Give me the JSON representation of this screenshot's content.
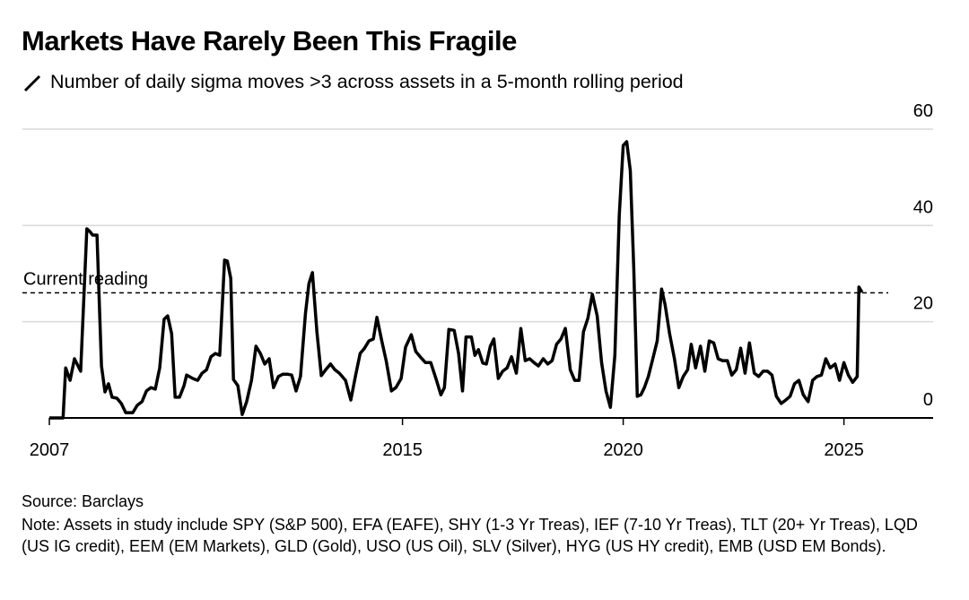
{
  "chart_data": {
    "type": "line",
    "title": "Markets Have Rarely Been This Fragile",
    "subtitle": "Number of daily sigma moves >3 across assets in a 5-month rolling period",
    "source": "Source: Barclays",
    "note": "Note: Assets in study include SPY (S&P 500), EFA (EAFE), SHY (1-3 Yr Treas), IEF (7-10 Yr Treas), TLT (20+ Yr Treas), LQD (US IG credit), EEM (EM Markets), GLD (Gold), USO (US Oil), SLV (Silver), HYG (US HY credit), EMB (USD EM Bonds).",
    "annotation": {
      "text": "Current reading",
      "value": 26
    },
    "color": "#000000",
    "grid": true,
    "xlim": [
      2007,
      2027
    ],
    "xticks": [
      2007,
      2015,
      2020,
      2025
    ],
    "ylim": [
      0,
      60
    ],
    "yticks": [
      0,
      20,
      40,
      60
    ],
    "x": [
      2007.0,
      2007.31,
      2007.37,
      2007.47,
      2007.57,
      2007.71,
      2007.85,
      2007.92,
      2007.98,
      2008.08,
      2008.18,
      2008.26,
      2008.34,
      2008.42,
      2008.53,
      2008.63,
      2008.73,
      2008.89,
      2008.99,
      2009.1,
      2009.2,
      2009.3,
      2009.4,
      2009.5,
      2009.6,
      2009.68,
      2009.77,
      2009.85,
      2009.95,
      2010.05,
      2010.11,
      2010.25,
      2010.36,
      2010.46,
      2010.56,
      2010.66,
      2010.76,
      2010.86,
      2010.97,
      2011.03,
      2011.11,
      2011.17,
      2011.27,
      2011.37,
      2011.47,
      2011.58,
      2011.68,
      2011.78,
      2011.88,
      2011.98,
      2012.08,
      2012.19,
      2012.29,
      2012.39,
      2012.49,
      2012.59,
      2012.69,
      2012.8,
      2012.88,
      2012.96,
      2013.06,
      2013.16,
      2013.26,
      2013.37,
      2013.47,
      2013.57,
      2013.71,
      2013.83,
      2013.94,
      2014.04,
      2014.14,
      2014.24,
      2014.34,
      2014.42,
      2014.53,
      2014.63,
      2014.75,
      2014.85,
      2014.97,
      2015.07,
      2015.2,
      2015.3,
      2015.4,
      2015.52,
      2015.64,
      2015.77,
      2015.87,
      2015.95,
      2016.05,
      2016.17,
      2016.27,
      2016.36,
      2016.44,
      2016.56,
      2016.64,
      2016.72,
      2016.82,
      2016.9,
      2016.99,
      2017.07,
      2017.17,
      2017.27,
      2017.37,
      2017.47,
      2017.58,
      2017.68,
      2017.78,
      2017.88,
      2017.98,
      2018.08,
      2018.19,
      2018.29,
      2018.39,
      2018.49,
      2018.59,
      2018.69,
      2018.8,
      2018.9,
      2019.0,
      2019.1,
      2019.2,
      2019.3,
      2019.41,
      2019.51,
      2019.61,
      2019.71,
      2019.81,
      2019.91,
      2020.0,
      2020.08,
      2020.16,
      2020.24,
      2020.32,
      2020.4,
      2020.48,
      2020.57,
      2020.67,
      2020.77,
      2020.87,
      2020.95,
      2021.05,
      2021.16,
      2021.26,
      2021.36,
      2021.46,
      2021.54,
      2021.64,
      2021.75,
      2021.85,
      2021.95,
      2022.05,
      2022.15,
      2022.25,
      2022.36,
      2022.46,
      2022.56,
      2022.66,
      2022.76,
      2022.86,
      2022.97,
      2023.07,
      2023.17,
      2023.27,
      2023.37,
      2023.47,
      2023.58,
      2023.68,
      2023.78,
      2023.88,
      2023.98,
      2024.08,
      2024.19,
      2024.29,
      2024.39,
      2024.49,
      2024.59,
      2024.69,
      2024.8,
      2024.9,
      2025.0,
      2025.1,
      2025.2,
      2025.3,
      2025.34,
      2025.41
    ],
    "values": [
      0,
      0,
      10.4,
      7.8,
      12.3,
      9.7,
      39.3,
      38.7,
      38,
      38,
      10.8,
      5.4,
      7.1,
      4.3,
      4.1,
      3,
      1.1,
      1.1,
      2.6,
      3.4,
      5.6,
      6.3,
      6,
      10.4,
      20.5,
      21.2,
      17.5,
      4.3,
      4.3,
      6.7,
      8.9,
      8.2,
      7.8,
      9.3,
      10,
      12.7,
      13.4,
      13,
      32.8,
      32.6,
      29,
      8,
      6.7,
      0.7,
      3.4,
      7.8,
      14.9,
      13.4,
      11.2,
      12.3,
      6.3,
      8.6,
      9.1,
      9.1,
      8.9,
      5.6,
      8.6,
      21.6,
      27.9,
      30.2,
      17.9,
      8.8,
      10,
      11.2,
      10,
      9.3,
      7.8,
      3.7,
      8.9,
      13.4,
      14.5,
      16,
      16.4,
      20.9,
      16,
      11.9,
      5.6,
      6.3,
      8.2,
      14.7,
      17.3,
      13.8,
      12.7,
      11.5,
      11.5,
      7.8,
      4.8,
      6.3,
      18.4,
      18.2,
      13.4,
      5.6,
      16.8,
      16.8,
      13,
      14.2,
      11.4,
      11.2,
      14.9,
      16.4,
      8.2,
      9.7,
      10.4,
      12.7,
      9.3,
      18.6,
      11.9,
      12.3,
      11.5,
      10.8,
      12.3,
      11.2,
      11.9,
      15.3,
      16.4,
      18.6,
      10,
      7.8,
      7.8,
      17.9,
      20.7,
      25.7,
      21.2,
      11.5,
      5.6,
      2.2,
      13,
      42.1,
      56.6,
      57.4,
      51.4,
      30.9,
      4.5,
      4.8,
      6.3,
      8.6,
      12.3,
      16,
      26.8,
      23.5,
      17.5,
      12.3,
      6.3,
      8.6,
      10,
      15.3,
      10.4,
      14.9,
      9.7,
      16,
      15.6,
      12.3,
      11.9,
      11.9,
      8.9,
      10,
      14.5,
      9.3,
      15.6,
      9.3,
      8.6,
      9.7,
      9.7,
      8.9,
      4.5,
      3,
      3.7,
      4.5,
      7.1,
      7.8,
      4.8,
      3.4,
      7.8,
      8.6,
      8.9,
      12.3,
      10.4,
      11.2,
      7.8,
      11.5,
      8.9,
      7.4,
      8.6,
      27.2,
      26.1
    ]
  }
}
